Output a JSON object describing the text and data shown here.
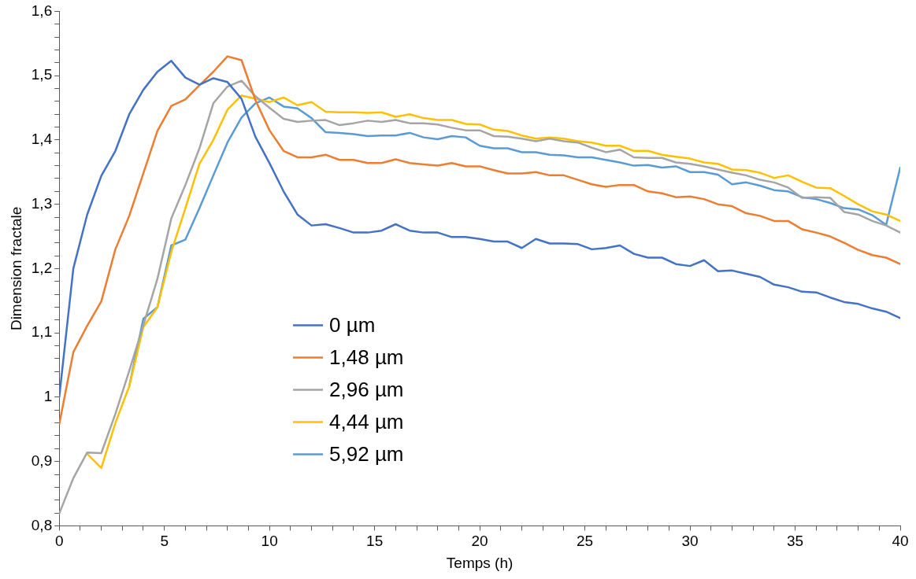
{
  "chart_data": {
    "type": "line",
    "xlabel": "Temps (h)",
    "ylabel": "Dimension fractale",
    "x": [
      0,
      0.67,
      1.33,
      2,
      2.67,
      3.33,
      4,
      4.67,
      5.33,
      6,
      6.67,
      7.33,
      8,
      8.67,
      9.33,
      10,
      10.67,
      11.33,
      12,
      12.67,
      13.33,
      14,
      14.67,
      15.33,
      16,
      16.67,
      17.33,
      18,
      18.67,
      19.33,
      20,
      20.67,
      21.33,
      22,
      22.67,
      23.33,
      24,
      24.67,
      25.33,
      26,
      26.67,
      27.33,
      28,
      28.67,
      29.33,
      30,
      30.67,
      31.33,
      32,
      32.67,
      33.33,
      34,
      34.67,
      35.33,
      36,
      36.67,
      37.33,
      38,
      38.67,
      39.33,
      40
    ],
    "series": [
      {
        "name": "0 µm",
        "color": "#4472c4",
        "values": [
          1.0,
          1.2,
          1.284,
          1.344,
          1.383,
          1.44,
          1.478,
          1.506,
          1.523,
          1.497,
          1.486,
          1.496,
          1.49,
          1.464,
          1.405,
          1.364,
          1.32,
          1.284,
          1.267,
          1.269,
          1.263,
          1.256,
          1.256,
          1.259,
          1.269,
          1.259,
          1.256,
          1.256,
          1.249,
          1.249,
          1.246,
          1.242,
          1.242,
          1.232,
          1.246,
          1.239,
          1.239,
          1.238,
          1.23,
          1.232,
          1.236,
          1.223,
          1.217,
          1.217,
          1.207,
          1.204,
          1.213,
          1.196,
          1.197,
          1.192,
          1.187,
          1.175,
          1.171,
          1.164,
          1.163,
          1.155,
          1.148,
          1.145,
          1.138,
          1.133,
          1.123
        ]
      },
      {
        "name": "1,48 µm",
        "color": "#ed7d31",
        "values": [
          0.958,
          1.07,
          1.111,
          1.149,
          1.23,
          1.282,
          1.348,
          1.414,
          1.453,
          1.463,
          1.485,
          1.506,
          1.53,
          1.524,
          1.462,
          1.415,
          1.383,
          1.373,
          1.373,
          1.377,
          1.369,
          1.369,
          1.364,
          1.364,
          1.37,
          1.364,
          1.362,
          1.36,
          1.364,
          1.359,
          1.359,
          1.353,
          1.348,
          1.348,
          1.35,
          1.345,
          1.345,
          1.338,
          1.331,
          1.327,
          1.33,
          1.33,
          1.32,
          1.317,
          1.311,
          1.312,
          1.308,
          1.3,
          1.297,
          1.286,
          1.282,
          1.274,
          1.274,
          1.261,
          1.256,
          1.25,
          1.24,
          1.229,
          1.221,
          1.217,
          1.207
        ]
      },
      {
        "name": "2,96 µm",
        "color": "#a5a5a5",
        "values": [
          0.819,
          0.874,
          0.914,
          0.913,
          0.974,
          1.041,
          1.112,
          1.184,
          1.278,
          1.33,
          1.387,
          1.457,
          1.483,
          1.492,
          1.468,
          1.45,
          1.433,
          1.428,
          1.43,
          1.431,
          1.423,
          1.426,
          1.43,
          1.428,
          1.431,
          1.426,
          1.426,
          1.424,
          1.419,
          1.415,
          1.415,
          1.406,
          1.405,
          1.402,
          1.398,
          1.402,
          1.398,
          1.396,
          1.388,
          1.381,
          1.385,
          1.373,
          1.372,
          1.372,
          1.365,
          1.363,
          1.359,
          1.354,
          1.349,
          1.345,
          1.338,
          1.334,
          1.326,
          1.31,
          1.311,
          1.31,
          1.288,
          1.284,
          1.274,
          1.267,
          1.256
        ]
      },
      {
        "name": "4,44 µm",
        "color": "#ffc000",
        "values": [
          null,
          null,
          0.912,
          0.89,
          0.96,
          1.017,
          1.109,
          1.14,
          1.226,
          1.294,
          1.363,
          1.4,
          1.447,
          1.469,
          1.464,
          1.459,
          1.466,
          1.454,
          1.459,
          1.444,
          1.443,
          1.443,
          1.442,
          1.443,
          1.436,
          1.44,
          1.434,
          1.431,
          1.431,
          1.425,
          1.424,
          1.416,
          1.414,
          1.407,
          1.402,
          1.404,
          1.402,
          1.398,
          1.396,
          1.391,
          1.391,
          1.383,
          1.383,
          1.377,
          1.374,
          1.371,
          1.365,
          1.363,
          1.354,
          1.353,
          1.349,
          1.341,
          1.345,
          1.335,
          1.326,
          1.325,
          1.313,
          1.3,
          1.289,
          1.284,
          1.274
        ]
      },
      {
        "name": "5,92 µm",
        "color": "#5b9bd5",
        "values": [
          null,
          null,
          null,
          null,
          null,
          1.017,
          1.122,
          1.14,
          1.236,
          1.245,
          1.294,
          1.345,
          1.396,
          1.435,
          1.457,
          1.466,
          1.452,
          1.449,
          1.434,
          1.412,
          1.411,
          1.409,
          1.406,
          1.407,
          1.407,
          1.411,
          1.404,
          1.401,
          1.406,
          1.404,
          1.391,
          1.387,
          1.387,
          1.381,
          1.381,
          1.377,
          1.376,
          1.373,
          1.373,
          1.369,
          1.365,
          1.36,
          1.361,
          1.357,
          1.359,
          1.35,
          1.35,
          1.346,
          1.331,
          1.334,
          1.329,
          1.322,
          1.32,
          1.311,
          1.308,
          1.302,
          1.294,
          1.292,
          1.283,
          1.268,
          1.357
        ]
      }
    ],
    "xlim": [
      0,
      40
    ],
    "xticks": [
      0,
      {
        "value": 1,
        "label": null
      },
      {
        "value": 2,
        "label": null
      },
      {
        "value": 3,
        "label": null
      },
      {
        "value": 4,
        "label": null
      },
      5,
      {
        "value": 6,
        "label": null
      },
      {
        "value": 7,
        "label": null
      },
      {
        "value": 8,
        "label": null
      },
      {
        "value": 9,
        "label": null
      },
      10,
      {
        "value": 11,
        "label": null
      },
      {
        "value": 12,
        "label": null
      },
      {
        "value": 13,
        "label": null
      },
      {
        "value": 14,
        "label": null
      },
      15,
      {
        "value": 16,
        "label": null
      },
      {
        "value": 17,
        "label": null
      },
      {
        "value": 18,
        "label": null
      },
      {
        "value": 19,
        "label": null
      },
      20,
      {
        "value": 21,
        "label": null
      },
      {
        "value": 22,
        "label": null
      },
      {
        "value": 23,
        "label": null
      },
      {
        "value": 24,
        "label": null
      },
      25,
      {
        "value": 26,
        "label": null
      },
      {
        "value": 27,
        "label": null
      },
      {
        "value": 28,
        "label": null
      },
      {
        "value": 29,
        "label": null
      },
      30,
      {
        "value": 31,
        "label": null
      },
      {
        "value": 32,
        "label": null
      },
      {
        "value": 33,
        "label": null
      },
      {
        "value": 34,
        "label": null
      },
      35,
      {
        "value": 36,
        "label": null
      },
      {
        "value": 37,
        "label": null
      },
      {
        "value": 38,
        "label": null
      },
      {
        "value": 39,
        "label": null
      },
      40
    ],
    "ylim": [
      0.8,
      1.6
    ],
    "yticks": [
      {
        "value": 0.8,
        "label": "0,8"
      },
      {
        "value": 0.82,
        "label": null
      },
      {
        "value": 0.84,
        "label": null
      },
      {
        "value": 0.86,
        "label": null
      },
      {
        "value": 0.88,
        "label": null
      },
      {
        "value": 0.9,
        "label": "0,9"
      },
      {
        "value": 0.92,
        "label": null
      },
      {
        "value": 0.94,
        "label": null
      },
      {
        "value": 0.96,
        "label": null
      },
      {
        "value": 0.98,
        "label": null
      },
      1,
      {
        "value": 1.02,
        "label": null
      },
      {
        "value": 1.04,
        "label": null
      },
      {
        "value": 1.06,
        "label": null
      },
      {
        "value": 1.08,
        "label": null
      },
      {
        "value": 1.1,
        "label": "1,1"
      },
      {
        "value": 1.12,
        "label": null
      },
      {
        "value": 1.14,
        "label": null
      },
      {
        "value": 1.16,
        "label": null
      },
      {
        "value": 1.18,
        "label": null
      },
      {
        "value": 1.2,
        "label": "1,2"
      },
      {
        "value": 1.22,
        "label": null
      },
      {
        "value": 1.24,
        "label": null
      },
      {
        "value": 1.26,
        "label": null
      },
      {
        "value": 1.28,
        "label": null
      },
      {
        "value": 1.3,
        "label": "1,3"
      },
      {
        "value": 1.32,
        "label": null
      },
      {
        "value": 1.34,
        "label": null
      },
      {
        "value": 1.36,
        "label": null
      },
      {
        "value": 1.38,
        "label": null
      },
      {
        "value": 1.4,
        "label": "1,4"
      },
      {
        "value": 1.42,
        "label": null
      },
      {
        "value": 1.44,
        "label": null
      },
      {
        "value": 1.46,
        "label": null
      },
      {
        "value": 1.48,
        "label": null
      },
      {
        "value": 1.5,
        "label": "1,5"
      },
      {
        "value": 1.52,
        "label": null
      },
      {
        "value": 1.54,
        "label": null
      },
      {
        "value": 1.56,
        "label": null
      },
      {
        "value": 1.58,
        "label": null
      },
      {
        "value": 1.6,
        "label": "1,6"
      }
    ],
    "grid": false,
    "legend": "bottom left",
    "marker": "none",
    "line_style": "solid"
  }
}
